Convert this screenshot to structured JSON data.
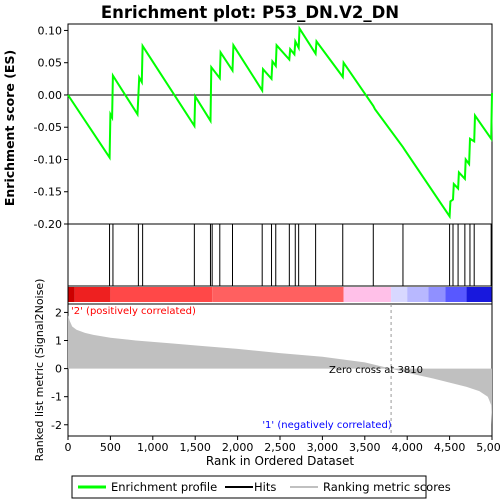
{
  "chart_data": {
    "type": "line",
    "title": "Enrichment plot: P53_DN.V2_DN",
    "es_panel": {
      "ylabel": "Enrichment score (ES)",
      "ylim": [
        -0.2,
        0.11
      ],
      "yticks": [
        "0.10",
        "0.05",
        "0.00",
        "-0.05",
        "-0.10",
        "-0.15",
        "-0.20"
      ],
      "ytick_values": [
        0.1,
        0.05,
        0.0,
        -0.05,
        -0.1,
        -0.15,
        -0.2
      ],
      "color": "#00ff00",
      "x": [
        0,
        490,
        500,
        520,
        530,
        820,
        840,
        870,
        880,
        1490,
        1500,
        1680,
        1690,
        1790,
        1800,
        1940,
        1950,
        2290,
        2300,
        2400,
        2410,
        2450,
        2460,
        2610,
        2620,
        2670,
        2680,
        2720,
        2730,
        2920,
        2930,
        3240,
        3250,
        3600,
        3620,
        3950,
        3970,
        4500,
        4510,
        4540,
        4550,
        4600,
        4610,
        4680,
        4690,
        4730,
        4740,
        4790,
        4800,
        4990,
        5000
      ],
      "y": [
        0.0,
        -0.097,
        -0.03,
        -0.035,
        0.03,
        -0.03,
        0.027,
        0.02,
        0.076,
        -0.048,
        -0.002,
        -0.04,
        0.043,
        0.026,
        0.066,
        0.038,
        0.077,
        0.007,
        0.04,
        0.025,
        0.052,
        0.045,
        0.077,
        0.055,
        0.071,
        0.063,
        0.083,
        0.073,
        0.103,
        0.064,
        0.083,
        0.028,
        0.05,
        -0.017,
        -0.022,
        -0.081,
        -0.085,
        -0.188,
        -0.165,
        -0.162,
        -0.138,
        -0.145,
        -0.12,
        -0.13,
        -0.1,
        -0.107,
        -0.068,
        -0.072,
        -0.032,
        -0.068,
        0.003
      ]
    },
    "hits": [
      490,
      530,
      830,
      880,
      1490,
      1680,
      1700,
      1790,
      1940,
      2290,
      2400,
      2450,
      2610,
      2680,
      2720,
      2920,
      3240,
      3600,
      3950,
      4500,
      4540,
      4600,
      4680,
      4740,
      4790,
      4990
    ],
    "ranked_panel": {
      "xlabel": "Rank in Ordered Dataset",
      "ylabel": "Ranked list metric (Signal2Noise)",
      "xlim": [
        0,
        5000
      ],
      "ylim": [
        -2.4,
        2.3
      ],
      "xticks": [
        "0",
        "500",
        "1,000",
        "1,500",
        "2,000",
        "2,500",
        "3,000",
        "3,500",
        "4,000",
        "4,500",
        "5,000"
      ],
      "xtick_values": [
        0,
        500,
        1000,
        1500,
        2000,
        2500,
        3000,
        3500,
        4000,
        4500,
        5000
      ],
      "yticks": [
        "2",
        "1",
        "0",
        "-1",
        "-2"
      ],
      "ytick_values": [
        2,
        1,
        0,
        -1,
        -2
      ],
      "metric_rank": [
        0,
        20,
        50,
        100,
        200,
        300,
        500,
        800,
        1200,
        1600,
        2000,
        2500,
        3000,
        3500,
        3810,
        4000,
        4300,
        4500,
        4700,
        4850,
        4950,
        4990,
        5000
      ],
      "metric_value": [
        1.9,
        1.7,
        1.5,
        1.38,
        1.27,
        1.2,
        1.1,
        1.0,
        0.9,
        0.8,
        0.7,
        0.55,
        0.42,
        0.22,
        0.0,
        -0.15,
        -0.35,
        -0.5,
        -0.65,
        -0.8,
        -1.0,
        -1.3,
        -2.0
      ],
      "zero_cross_label": "Zero cross at 3810",
      "zero_cross": 3810,
      "pos_label": "'2' (positively correlated)",
      "neg_label": "'1' (negatively correlated)",
      "pos_color": "#ff0000",
      "neg_color": "#0000ff"
    },
    "heat_bar": [
      {
        "from": 0,
        "to": 80,
        "color": "#cc0000"
      },
      {
        "from": 80,
        "to": 500,
        "color": "#ee2020"
      },
      {
        "from": 500,
        "to": 1700,
        "color": "#ff4848"
      },
      {
        "from": 1700,
        "to": 3250,
        "color": "#ff6060"
      },
      {
        "from": 3250,
        "to": 3810,
        "color": "#ffc0e8"
      },
      {
        "from": 3810,
        "to": 4000,
        "color": "#d8d8ff"
      },
      {
        "from": 4000,
        "to": 4250,
        "color": "#b8b8ff"
      },
      {
        "from": 4250,
        "to": 4450,
        "color": "#9090ff"
      },
      {
        "from": 4450,
        "to": 4700,
        "color": "#5858ff"
      },
      {
        "from": 4700,
        "to": 5000,
        "color": "#1818dd"
      }
    ],
    "legend": [
      "Enrichment profile",
      "Hits",
      "Ranking metric scores"
    ],
    "legend_colors": [
      "#00ff00",
      "#000000",
      "#c0c0c0"
    ]
  }
}
